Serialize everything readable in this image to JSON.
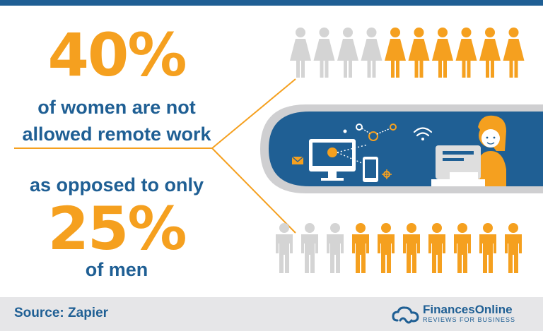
{
  "women_stat": {
    "percent": "40%",
    "line1": "of women are not",
    "line2": "allowed remote work"
  },
  "men_stat": {
    "intro": "as opposed to only",
    "percent": "25%",
    "label": "of men"
  },
  "women_row": {
    "total": 10,
    "highlighted": 6
  },
  "men_row": {
    "total": 10,
    "highlighted": 7
  },
  "footer": {
    "source": "Source: Zapier",
    "brand_name": "FinancesOnline",
    "brand_tagline": "REVIEWS FOR BUSINESS"
  },
  "icons": [
    "woman-figure-icon",
    "man-figure-icon",
    "computer-monitor-icon",
    "smartphone-icon",
    "envelope-icon",
    "wifi-icon",
    "network-nodes-icon",
    "gear-icon",
    "woman-at-laptop-icon",
    "cloud-logo-icon"
  ],
  "colors": {
    "accent": "#f5a01f",
    "primary": "#1f5f94",
    "muted": "#d4d4d4",
    "footer_bg": "#e6e6e8"
  }
}
